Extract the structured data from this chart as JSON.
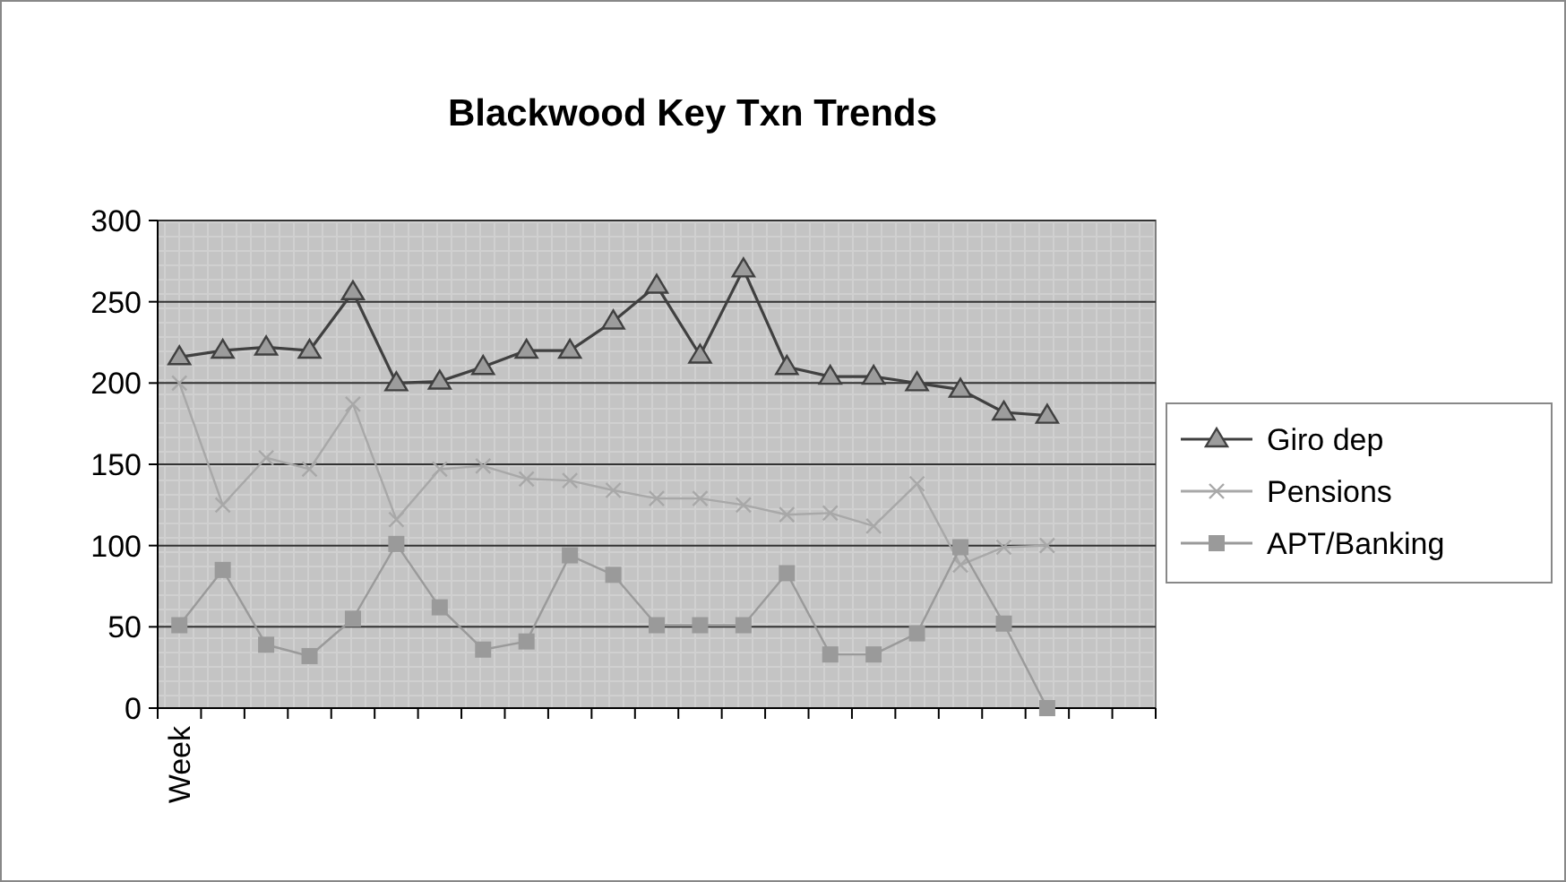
{
  "chart_data": {
    "type": "line",
    "title": "Blackwood Key Txn Trends",
    "categories": [
      "Week",
      null,
      null,
      null,
      null,
      null,
      null,
      null,
      null,
      null,
      null,
      null,
      null,
      null,
      null,
      null,
      null,
      null,
      null,
      null,
      null,
      null,
      null
    ],
    "series": [
      {
        "name": "Giro dep",
        "color": "#404040",
        "marker": "triangle",
        "values": [
          216,
          220,
          222,
          220,
          256,
          200,
          201,
          210,
          220,
          220,
          238,
          260,
          217,
          270,
          210,
          204,
          204,
          200,
          196,
          182,
          180,
          null,
          null
        ]
      },
      {
        "name": "Pensions",
        "color": "#a8a8a8",
        "marker": "cross",
        "values": [
          200,
          125,
          154,
          147,
          187,
          116,
          147,
          149,
          141,
          140,
          134,
          129,
          129,
          125,
          119,
          120,
          112,
          138,
          88,
          99,
          100,
          null,
          null
        ]
      },
      {
        "name": "APT/Banking",
        "color": "#9a9a9a",
        "marker": "square",
        "values": [
          51,
          85,
          39,
          32,
          55,
          101,
          62,
          36,
          41,
          94,
          82,
          51,
          51,
          51,
          83,
          33,
          33,
          46,
          99,
          52,
          0,
          null,
          null
        ]
      }
    ],
    "ylim": [
      0,
      300
    ],
    "yticks": [
      0,
      50,
      100,
      150,
      200,
      250,
      300
    ],
    "grid": "y",
    "legend": "right"
  }
}
